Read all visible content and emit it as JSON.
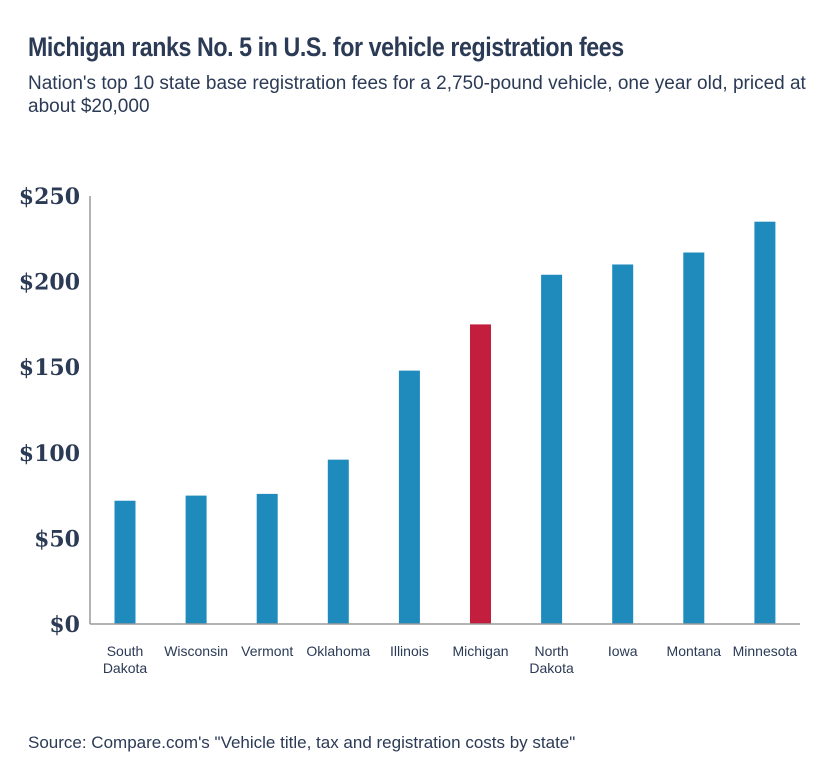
{
  "title": "Michigan ranks No. 5 in U.S. for vehicle registration fees",
  "subtitle": "Nation's top 10 state base registration fees for a 2,750-pound vehicle, one year old, priced at about $20,000",
  "source": "Source: Compare.com's \"Vehicle title, tax and registration costs by state\"",
  "colors": {
    "bar": "#1f8bbd",
    "highlight": "#c41e3f",
    "axis": "#9a9a9a",
    "text": "#2b3a55"
  },
  "chart_data": {
    "type": "bar",
    "categories": [
      [
        "South",
        "Dakota"
      ],
      [
        "Wisconsin"
      ],
      [
        "Vermont"
      ],
      [
        "Oklahoma"
      ],
      [
        "Illinois"
      ],
      [
        "Michigan"
      ],
      [
        "North",
        "Dakota"
      ],
      [
        "Iowa"
      ],
      [
        "Montana"
      ],
      [
        "Minnesota"
      ]
    ],
    "values": [
      72,
      75,
      76,
      96,
      148,
      175,
      204,
      210,
      217,
      235
    ],
    "highlight_category": "Michigan",
    "yticks": [
      "$0",
      "$50",
      "$100",
      "$150",
      "$200",
      "$250"
    ],
    "ylim": [
      0,
      250
    ],
    "grid": false,
    "legend": "none"
  }
}
